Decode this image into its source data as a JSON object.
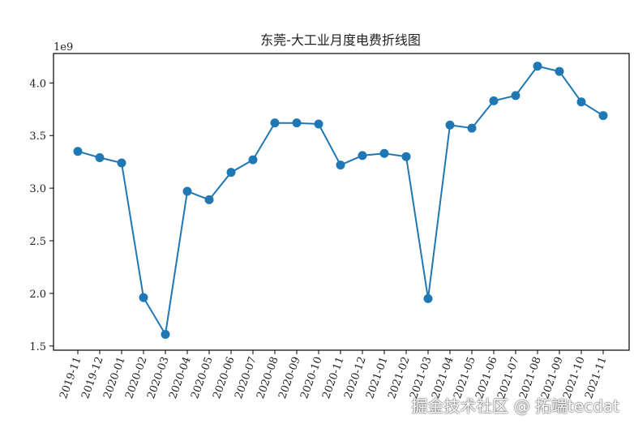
{
  "chart_data": {
    "type": "line",
    "title": "东莞-大工业月度电费折线图",
    "offset_label": "1e9",
    "x": [
      "2019-11",
      "2019-12",
      "2020-01",
      "2020-02",
      "2020-03",
      "2020-04",
      "2020-05",
      "2020-06",
      "2020-07",
      "2020-08",
      "2020-09",
      "2020-10",
      "2020-11",
      "2020-12",
      "2021-01",
      "2021-02",
      "2021-03",
      "2021-04",
      "2021-05",
      "2021-06",
      "2021-07",
      "2021-08",
      "2021-09",
      "2021-10",
      "2021-11"
    ],
    "series": [
      {
        "values": [
          3.35,
          3.29,
          3.24,
          1.96,
          1.61,
          2.97,
          2.89,
          3.15,
          3.27,
          3.62,
          3.62,
          3.61,
          3.22,
          3.31,
          3.33,
          3.3,
          1.95,
          3.6,
          3.57,
          3.83,
          3.88,
          4.16,
          4.11,
          3.82,
          3.69
        ]
      }
    ],
    "y_ticks": [
      "1.5",
      "2.0",
      "2.5",
      "3.0",
      "3.5",
      "4.0"
    ],
    "ylim": [
      1.46,
      4.28
    ],
    "grid": false,
    "color": "#1f77b4"
  },
  "watermark": "掘金技术社区 @ 拓端tecdat"
}
